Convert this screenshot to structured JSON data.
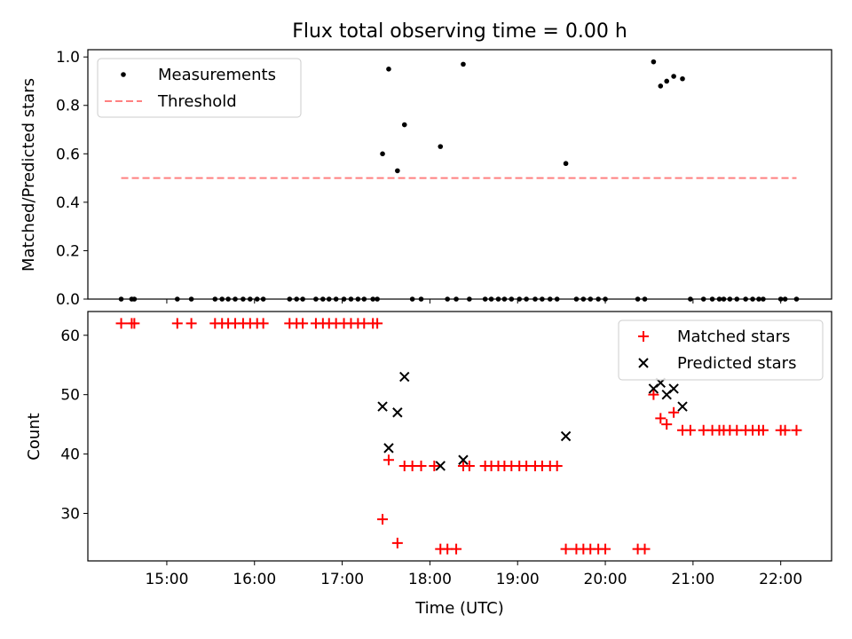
{
  "figure": {
    "title": "Flux total observing time = 0.00 h"
  },
  "chart_data": [
    {
      "type": "scatter",
      "ylabel": "Matched/Predicted stars",
      "xlim": [
        14.1,
        22.58
      ],
      "ylim": [
        0,
        1.03
      ],
      "yticks": [
        0.0,
        0.2,
        0.4,
        0.6,
        0.8,
        1.0
      ],
      "ytick_labels": [
        "0.0",
        "0.2",
        "0.4",
        "0.6",
        "0.8",
        "1.0"
      ],
      "grid": false,
      "legend": {
        "placement": "top-left",
        "entries": [
          "Measurements",
          "Threshold"
        ]
      },
      "series": [
        {
          "name": "Measurements",
          "kind": "dot",
          "color": "#000000",
          "x": [
            14.48,
            14.6,
            14.63,
            15.12,
            15.28,
            15.55,
            15.63,
            15.7,
            15.78,
            15.87,
            15.95,
            16.03,
            16.1,
            16.4,
            16.48,
            16.55,
            16.7,
            16.78,
            16.85,
            16.93,
            17.02,
            17.1,
            17.18,
            17.25,
            17.35,
            17.4,
            17.46,
            17.53,
            17.63,
            17.71,
            17.8,
            17.9,
            18.12,
            18.2,
            18.3,
            18.38,
            18.45,
            18.63,
            18.7,
            18.78,
            18.85,
            18.93,
            19.02,
            19.1,
            19.2,
            19.28,
            19.37,
            19.45,
            19.55,
            19.67,
            19.75,
            19.83,
            19.92,
            20.0,
            20.37,
            20.45,
            20.55,
            20.63,
            20.7,
            20.78,
            20.88,
            20.97,
            21.12,
            21.22,
            21.3,
            21.35,
            21.42,
            21.5,
            21.6,
            21.68,
            21.75,
            21.8,
            22.0,
            22.05,
            22.18
          ],
          "y": [
            0,
            0,
            0,
            0,
            0,
            0,
            0,
            0,
            0,
            0,
            0,
            0,
            0,
            0,
            0,
            0,
            0,
            0,
            0,
            0,
            0,
            0,
            0,
            0,
            0,
            0,
            0.6,
            0.95,
            0.53,
            0.72,
            0,
            0,
            0.63,
            0,
            0,
            0.97,
            0,
            0,
            0,
            0,
            0,
            0,
            0,
            0,
            0,
            0,
            0,
            0,
            0.56,
            0,
            0,
            0,
            0,
            0,
            0,
            0,
            0.98,
            0.88,
            0.9,
            0.92,
            0.91,
            0,
            0,
            0,
            0,
            0,
            0,
            0,
            0,
            0,
            0,
            0,
            0,
            0,
            0
          ]
        },
        {
          "name": "Threshold",
          "kind": "dashed-line",
          "color": "#ff8080",
          "x": [
            14.48,
            22.18
          ],
          "y": [
            0.5,
            0.5
          ]
        }
      ]
    },
    {
      "type": "scatter",
      "xlabel": "Time (UTC)",
      "ylabel": "Count",
      "xlim": [
        14.1,
        22.58
      ],
      "ylim": [
        22,
        64
      ],
      "yticks": [
        30,
        40,
        50,
        60
      ],
      "ytick_labels": [
        "30",
        "40",
        "50",
        "60"
      ],
      "xticks": [
        15,
        16,
        17,
        18,
        19,
        20,
        21,
        22
      ],
      "xtick_labels": [
        "15:00",
        "16:00",
        "17:00",
        "18:00",
        "19:00",
        "20:00",
        "21:00",
        "22:00"
      ],
      "grid": false,
      "legend": {
        "placement": "top-right",
        "entries": [
          "Matched stars",
          "Predicted stars"
        ]
      },
      "series": [
        {
          "name": "Matched stars",
          "kind": "plus",
          "color": "#ff0000",
          "x": [
            14.48,
            14.6,
            14.63,
            15.12,
            15.28,
            15.55,
            15.63,
            15.7,
            15.78,
            15.87,
            15.95,
            16.03,
            16.1,
            16.4,
            16.48,
            16.55,
            16.7,
            16.78,
            16.85,
            16.93,
            17.02,
            17.1,
            17.18,
            17.25,
            17.35,
            17.4,
            17.46,
            17.53,
            17.63,
            17.71,
            17.8,
            17.9,
            18.05,
            18.12,
            18.2,
            18.3,
            18.38,
            18.45,
            18.63,
            18.7,
            18.78,
            18.85,
            18.93,
            19.02,
            19.1,
            19.2,
            19.28,
            19.37,
            19.45,
            19.55,
            19.67,
            19.75,
            19.83,
            19.92,
            20.0,
            20.37,
            20.45,
            20.55,
            20.63,
            20.7,
            20.78,
            20.88,
            20.97,
            21.12,
            21.22,
            21.3,
            21.35,
            21.42,
            21.5,
            21.6,
            21.68,
            21.75,
            21.8,
            22.0,
            22.05,
            22.18
          ],
          "y": [
            62,
            62,
            62,
            62,
            62,
            62,
            62,
            62,
            62,
            62,
            62,
            62,
            62,
            62,
            62,
            62,
            62,
            62,
            62,
            62,
            62,
            62,
            62,
            62,
            62,
            62,
            29,
            39,
            25,
            38,
            38,
            38,
            38,
            24,
            24,
            24,
            38,
            38,
            38,
            38,
            38,
            38,
            38,
            38,
            38,
            38,
            38,
            38,
            38,
            24,
            24,
            24,
            24,
            24,
            24,
            24,
            24,
            50,
            46,
            45,
            47,
            44,
            44,
            44,
            44,
            44,
            44,
            44,
            44,
            44,
            44,
            44,
            44,
            44,
            44,
            44
          ]
        },
        {
          "name": "Predicted stars",
          "kind": "x",
          "color": "#000000",
          "x": [
            17.46,
            17.53,
            17.63,
            17.71,
            18.12,
            18.38,
            19.55,
            20.55,
            20.63,
            20.7,
            20.78,
            20.88
          ],
          "y": [
            48,
            41,
            47,
            53,
            38,
            39,
            43,
            51,
            52,
            50,
            51,
            48
          ]
        }
      ]
    }
  ]
}
